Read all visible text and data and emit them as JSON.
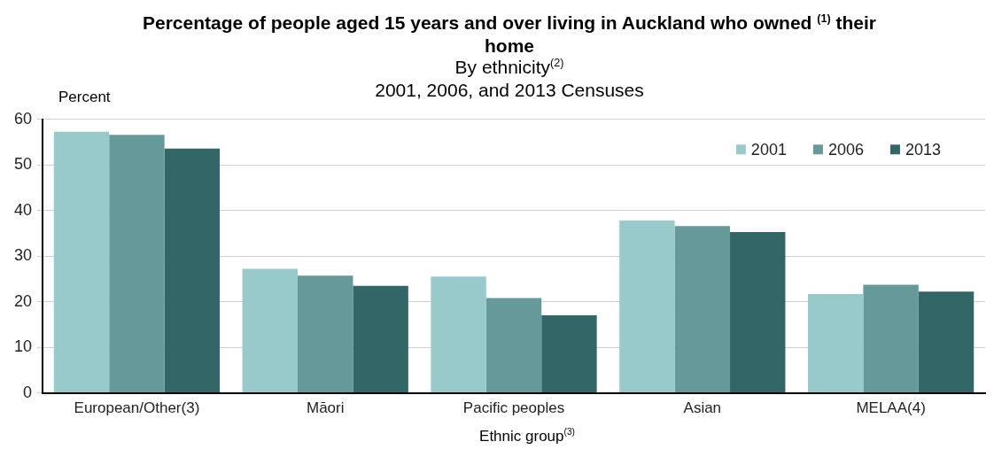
{
  "chart_data": {
    "type": "bar",
    "title": "Percentage of people aged 15 years and over living in Auckland who owned $^{(1)}$ their home",
    "subtitle": "By ethnicity$^{(2)}$\n2001, 2006, and 2013 Censuses",
    "xlabel": "Ethnic group$^{(3)}$",
    "ylabel": "Percent",
    "categories": [
      "European/Other(3)",
      "Māori",
      "Pacific peoples",
      "Asian",
      "MELAA(4)"
    ],
    "series": [
      {
        "name": "2001",
        "color": "#99cacb",
        "values": [
          57.3,
          27.2,
          25.5,
          37.8,
          21.7
        ]
      },
      {
        "name": "2006",
        "color": "#669999",
        "values": [
          56.6,
          25.7,
          20.8,
          36.6,
          23.7
        ]
      },
      {
        "name": "2013",
        "color": "#336666",
        "values": [
          53.6,
          23.5,
          17.0,
          35.3,
          22.2
        ]
      }
    ],
    "ylim": [
      0,
      60
    ],
    "yticks": [
      0,
      10,
      20,
      30,
      40,
      50,
      60
    ],
    "grid": "y",
    "legend": "top right"
  }
}
